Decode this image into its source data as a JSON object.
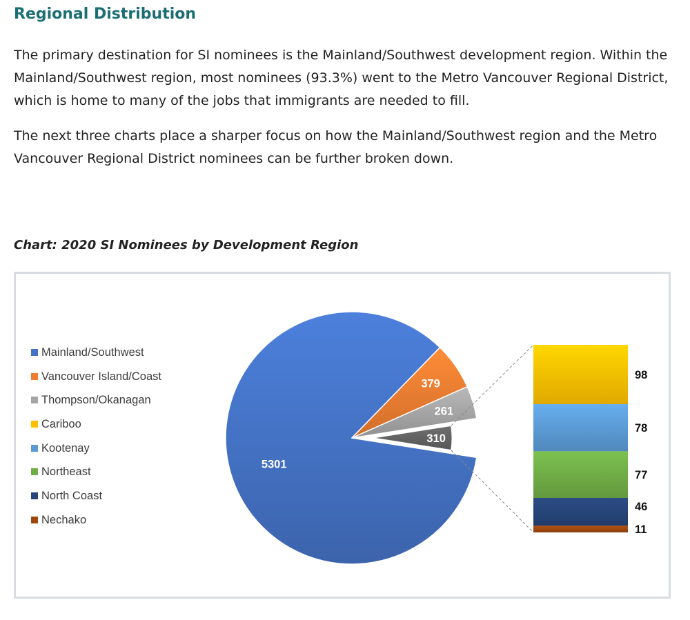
{
  "heading": "Regional Distribution",
  "paragraphs": [
    "The primary destination for SI nominees is the Mainland/Southwest development region. Within the Mainland/Southwest region, most nominees (93.3%) went to the Metro Vancouver Regional District, which is home to many of the jobs that immigrants are needed to fill.",
    "The next three charts place a sharper focus on how the Mainland/Southwest region and the Metro Vancouver Regional District nominees can be further broken down."
  ],
  "chart_caption": "Chart: 2020 SI Nominees by Development Region",
  "chart_data": {
    "type": "pie",
    "title": "",
    "categories": [
      "Mainland/Southwest",
      "Vancouver Island/Coast",
      "Thompson/Okanagan",
      "Cariboo",
      "Kootenay",
      "Northeast",
      "North Coast",
      "Nechako"
    ],
    "values": [
      5301,
      379,
      261,
      98,
      78,
      77,
      46,
      11
    ],
    "colors": [
      "#4472c4",
      "#ed7d31",
      "#a5a5a5",
      "#ffc000",
      "#5b9bd5",
      "#70ad47",
      "#264478",
      "#9e480e"
    ],
    "legend_position": "left",
    "sub_chart": {
      "type": "stacked-bar",
      "grouped_value": 310,
      "grouped_color": "#636363",
      "categories": [
        "Cariboo",
        "Kootenay",
        "Northeast",
        "North Coast",
        "Nechako"
      ],
      "values": [
        98,
        78,
        77,
        46,
        11
      ]
    }
  }
}
